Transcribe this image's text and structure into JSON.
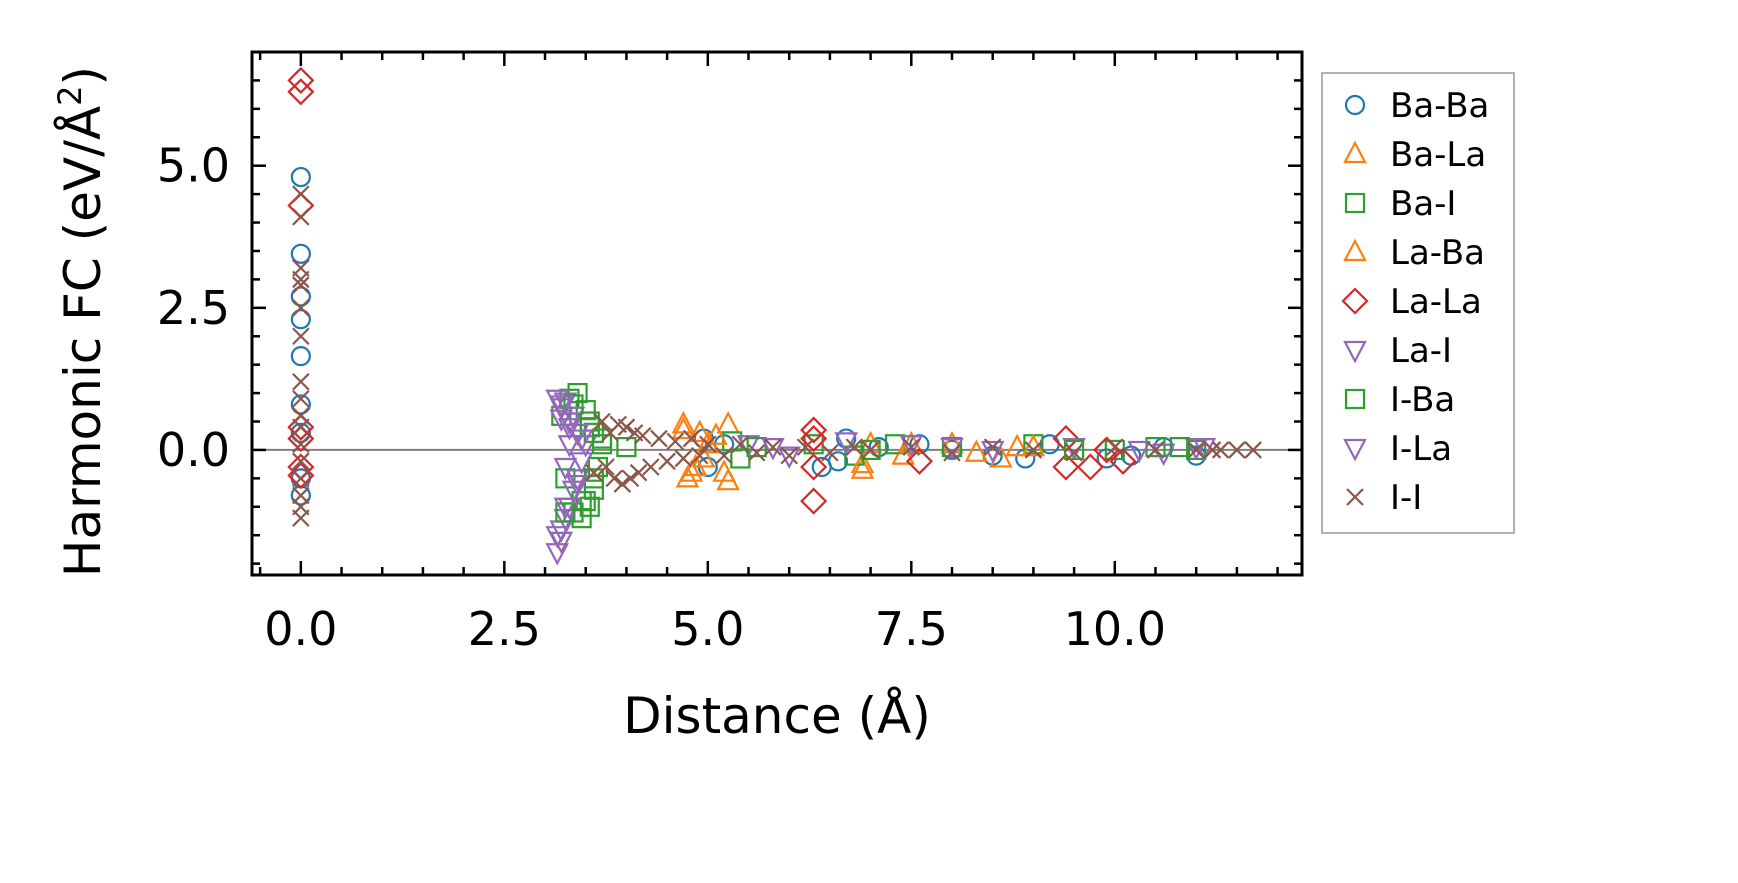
{
  "chart_data": {
    "type": "scatter",
    "title": "",
    "xlabel": "Distance (Å)",
    "ylabel": {
      "text": "Harmonic FC (eV/Å",
      "sup": "2",
      "tail": ")"
    },
    "xlim": [
      -0.6,
      12.3
    ],
    "ylim": [
      -2.2,
      7.0
    ],
    "x_ticks": [
      0.0,
      2.5,
      5.0,
      7.5,
      10.0
    ],
    "x_tick_labels": [
      "0.0",
      "2.5",
      "5.0",
      "7.5",
      "10.0"
    ],
    "y_ticks": [
      0.0,
      2.5,
      5.0
    ],
    "y_tick_labels": [
      "0.0",
      "2.5",
      "5.0"
    ],
    "zero_line": true,
    "grid": false,
    "legend_position": "outside-right",
    "series": [
      {
        "name": "Ba-Ba",
        "marker": "circle",
        "color": "#1f77b4",
        "points": [
          [
            0.0,
            4.8
          ],
          [
            0.0,
            3.45
          ],
          [
            0.0,
            2.7
          ],
          [
            0.0,
            2.3
          ],
          [
            0.0,
            1.65
          ],
          [
            0.0,
            0.8
          ],
          [
            0.0,
            0.3
          ],
          [
            0.0,
            -0.5
          ],
          [
            0.0,
            -0.8
          ],
          [
            4.95,
            0.2
          ],
          [
            5.0,
            -0.3
          ],
          [
            5.2,
            0.1
          ],
          [
            6.4,
            -0.3
          ],
          [
            6.6,
            -0.2
          ],
          [
            6.7,
            0.2
          ],
          [
            7.1,
            0.05
          ],
          [
            7.6,
            0.1
          ],
          [
            8.0,
            0.0
          ],
          [
            8.5,
            -0.1
          ],
          [
            8.9,
            -0.15
          ],
          [
            9.2,
            0.1
          ],
          [
            9.9,
            -0.15
          ],
          [
            10.2,
            -0.1
          ],
          [
            10.6,
            0.05
          ],
          [
            11.0,
            -0.1
          ]
        ]
      },
      {
        "name": "Ba-La",
        "marker": "triangle-up",
        "color": "#ff7f0e",
        "points": [
          [
            4.7,
            0.45
          ],
          [
            4.75,
            -0.5
          ],
          [
            4.85,
            -0.3
          ],
          [
            4.9,
            0.3
          ],
          [
            5.0,
            0.1
          ],
          [
            5.25,
            0.45
          ],
          [
            5.25,
            -0.55
          ],
          [
            6.9,
            -0.35
          ],
          [
            7.0,
            0.1
          ],
          [
            7.4,
            -0.1
          ],
          [
            8.0,
            0.1
          ],
          [
            8.6,
            -0.15
          ],
          [
            8.8,
            0.05
          ]
        ]
      },
      {
        "name": "Ba-I",
        "marker": "square",
        "color": "#2ca02c",
        "points": [
          [
            3.2,
            0.6
          ],
          [
            3.25,
            -0.5
          ],
          [
            3.3,
            0.9
          ],
          [
            3.35,
            -1.1
          ],
          [
            3.4,
            1.0
          ],
          [
            3.45,
            -1.2
          ],
          [
            3.5,
            0.7
          ],
          [
            3.5,
            -0.9
          ],
          [
            3.55,
            0.4
          ],
          [
            3.55,
            -1.0
          ],
          [
            3.6,
            0.3
          ],
          [
            3.6,
            -0.7
          ],
          [
            3.65,
            -0.3
          ],
          [
            3.7,
            0.2
          ],
          [
            5.3,
            0.15
          ],
          [
            5.4,
            -0.15
          ],
          [
            6.3,
            0.1
          ],
          [
            6.8,
            -0.1
          ],
          [
            7.3,
            0.1
          ],
          [
            8.0,
            0.05
          ],
          [
            9.0,
            0.1
          ],
          [
            10.0,
            0.0
          ],
          [
            10.5,
            0.05
          ],
          [
            11.0,
            0.0
          ]
        ]
      },
      {
        "name": "La-Ba",
        "marker": "triangle-up",
        "color": "#ff7f0e",
        "points": [
          [
            4.7,
            0.35
          ],
          [
            4.8,
            -0.4
          ],
          [
            4.95,
            -0.15
          ],
          [
            5.1,
            0.25
          ],
          [
            5.2,
            -0.4
          ],
          [
            6.9,
            -0.25
          ],
          [
            7.5,
            0.1
          ],
          [
            8.3,
            -0.05
          ],
          [
            9.0,
            0.05
          ]
        ]
      },
      {
        "name": "La-La",
        "marker": "diamond",
        "color": "#d62728",
        "points": [
          [
            0.0,
            6.5
          ],
          [
            0.0,
            6.3
          ],
          [
            0.0,
            4.3
          ],
          [
            0.0,
            0.4
          ],
          [
            0.0,
            0.2
          ],
          [
            0.0,
            -0.3
          ],
          [
            0.0,
            -0.45
          ],
          [
            6.3,
            0.35
          ],
          [
            6.3,
            -0.9
          ],
          [
            6.3,
            0.2
          ],
          [
            6.3,
            -0.3
          ],
          [
            7.6,
            -0.2
          ],
          [
            9.4,
            0.2
          ],
          [
            9.4,
            -0.3
          ],
          [
            9.7,
            -0.3
          ],
          [
            9.9,
            0.0
          ],
          [
            10.1,
            -0.2
          ]
        ]
      },
      {
        "name": "La-I",
        "marker": "triangle-down",
        "color": "#9467bd",
        "points": [
          [
            3.15,
            -1.8
          ],
          [
            3.15,
            0.9
          ],
          [
            3.2,
            -1.6
          ],
          [
            3.2,
            0.75
          ],
          [
            3.2,
            -1.4
          ],
          [
            3.2,
            0.55
          ],
          [
            3.25,
            -1.2
          ],
          [
            3.25,
            0.85
          ],
          [
            3.25,
            -0.3
          ],
          [
            3.3,
            -1.0
          ],
          [
            3.3,
            0.4
          ],
          [
            3.3,
            0.1
          ],
          [
            3.35,
            -0.7
          ],
          [
            3.35,
            0.6
          ],
          [
            3.4,
            -0.5
          ],
          [
            3.4,
            0.3
          ],
          [
            3.45,
            -0.2
          ],
          [
            3.5,
            0.1
          ],
          [
            5.5,
            0.1
          ],
          [
            6.0,
            -0.1
          ],
          [
            6.7,
            0.15
          ],
          [
            7.5,
            0.1
          ],
          [
            8.5,
            0.0
          ],
          [
            9.5,
            0.05
          ],
          [
            10.6,
            -0.05
          ],
          [
            11.0,
            0.05
          ],
          [
            11.1,
            0.05
          ]
        ]
      },
      {
        "name": "I-Ba",
        "marker": "square",
        "color": "#2ca02c",
        "points": [
          [
            3.25,
            -1.1
          ],
          [
            3.35,
            0.8
          ],
          [
            3.45,
            -0.9
          ],
          [
            3.55,
            0.5
          ],
          [
            3.6,
            -0.5
          ],
          [
            3.7,
            0.1
          ],
          [
            4.0,
            0.05
          ],
          [
            5.6,
            0.05
          ],
          [
            7.0,
            0.0
          ],
          [
            9.5,
            0.0
          ],
          [
            10.8,
            0.05
          ]
        ]
      },
      {
        "name": "I-La",
        "marker": "triangle-down",
        "color": "#9467bd",
        "points": [
          [
            3.15,
            -1.5
          ],
          [
            3.2,
            0.8
          ],
          [
            3.25,
            -1.0
          ],
          [
            3.3,
            0.5
          ],
          [
            3.4,
            -0.6
          ],
          [
            3.45,
            0.2
          ],
          [
            5.8,
            0.05
          ],
          [
            8.0,
            0.05
          ],
          [
            10.3,
            0.0
          ]
        ]
      },
      {
        "name": "I-I",
        "marker": "x",
        "color": "#8c564b",
        "points": [
          [
            0.0,
            4.5
          ],
          [
            0.0,
            4.1
          ],
          [
            0.0,
            3.2
          ],
          [
            0.0,
            3.0
          ],
          [
            0.0,
            2.9
          ],
          [
            0.0,
            2.5
          ],
          [
            0.0,
            2.0
          ],
          [
            0.0,
            1.2
          ],
          [
            0.0,
            0.9
          ],
          [
            0.0,
            0.6
          ],
          [
            0.0,
            0.4
          ],
          [
            0.0,
            0.1
          ],
          [
            0.0,
            -0.2
          ],
          [
            0.0,
            -0.5
          ],
          [
            0.0,
            -0.8
          ],
          [
            0.0,
            -1.0
          ],
          [
            0.0,
            -1.2
          ],
          [
            3.6,
            -0.4
          ],
          [
            3.7,
            0.5
          ],
          [
            3.75,
            -0.3
          ],
          [
            3.8,
            0.3
          ],
          [
            3.85,
            -0.5
          ],
          [
            3.9,
            0.45
          ],
          [
            3.95,
            -0.6
          ],
          [
            4.0,
            0.4
          ],
          [
            4.05,
            -0.5
          ],
          [
            4.1,
            0.3
          ],
          [
            4.15,
            -0.4
          ],
          [
            4.2,
            0.25
          ],
          [
            4.3,
            -0.3
          ],
          [
            4.4,
            0.2
          ],
          [
            4.5,
            -0.2
          ],
          [
            4.6,
            0.15
          ],
          [
            4.7,
            -0.15
          ],
          [
            4.8,
            0.2
          ],
          [
            4.9,
            -0.1
          ],
          [
            5.0,
            0.1
          ],
          [
            5.2,
            -0.1
          ],
          [
            5.4,
            0.1
          ],
          [
            5.6,
            -0.05
          ],
          [
            5.8,
            0.05
          ],
          [
            6.0,
            -0.1
          ],
          [
            6.2,
            0.05
          ],
          [
            6.5,
            -0.05
          ],
          [
            6.8,
            0.05
          ],
          [
            7.0,
            0.0
          ],
          [
            7.5,
            0.05
          ],
          [
            8.0,
            -0.05
          ],
          [
            8.5,
            0.05
          ],
          [
            9.0,
            0.0
          ],
          [
            9.5,
            -0.05
          ],
          [
            10.0,
            0.05
          ],
          [
            10.5,
            0.0
          ],
          [
            11.0,
            0.0
          ],
          [
            11.2,
            0.0
          ],
          [
            11.3,
            0.0
          ],
          [
            11.5,
            0.0
          ],
          [
            11.7,
            0.0
          ]
        ]
      }
    ]
  }
}
